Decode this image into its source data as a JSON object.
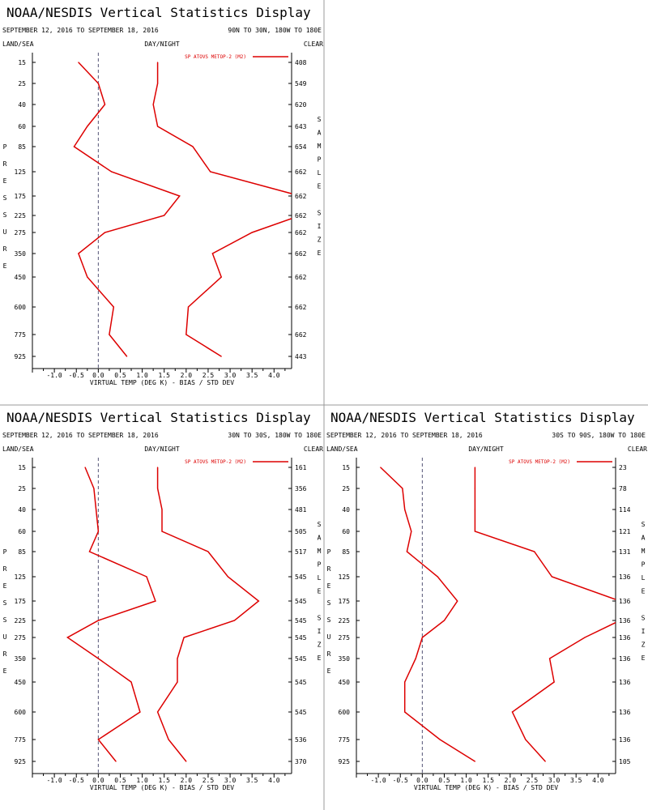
{
  "panel_title": "NOAA/NESDIS Vertical Statistics Display",
  "labels": {
    "land_sea": "LAND/SEA",
    "day_night": "DAY/NIGHT",
    "clear": "CLEAR",
    "xlabel": "VIRTUAL TEMP (DEG K) - BIAS / STD DEV",
    "left_axis_letters": [
      "P",
      "R",
      "E",
      "S",
      "S",
      "U",
      "R",
      "E"
    ],
    "right_axis_letters": [
      "S",
      "A",
      "M",
      "P",
      "L",
      "E",
      "",
      "S",
      "I",
      "Z",
      "E"
    ]
  },
  "colors": {
    "series": "#dd0000",
    "axis": "#000000",
    "zero_line": "#555577",
    "divider": "#999999"
  },
  "chart_data": [
    {
      "type": "line",
      "date_range": "SEPTEMBER 12, 2016 TO SEPTEMBER 18, 2016",
      "region": "90N TO 30N, 180W TO 180E",
      "legend": "SP ATOVS METOP-2 (M2)",
      "pressure_levels": [
        15,
        25,
        40,
        60,
        85,
        125,
        175,
        225,
        275,
        350,
        450,
        600,
        775,
        925
      ],
      "sample_size": [
        408,
        549,
        620,
        643,
        654,
        662,
        662,
        662,
        662,
        662,
        662,
        662,
        662,
        443
      ],
      "x_ticks": [
        "-1.0",
        "-0.5",
        "0.0",
        "0.5",
        "1.0",
        "1.5",
        "2.0",
        "2.5",
        "3.0",
        "3.5",
        "4.0"
      ],
      "xlim": [
        -1.5,
        4.4
      ],
      "series": [
        {
          "name": "bias",
          "values": [
            -0.45,
            0.0,
            0.15,
            -0.25,
            -0.55,
            0.3,
            1.85,
            1.5,
            0.15,
            -0.45,
            -0.25,
            0.35,
            0.25,
            0.65
          ]
        },
        {
          "name": "std_dev",
          "values": [
            1.35,
            1.35,
            1.25,
            1.35,
            2.15,
            2.55,
            4.6,
            4.6,
            3.5,
            2.6,
            2.8,
            2.05,
            2.0,
            2.8
          ]
        }
      ]
    },
    {
      "type": "line",
      "date_range": "SEPTEMBER 12, 2016 TO SEPTEMBER 18, 2016",
      "region": "30N TO 30S, 180W TO 180E",
      "legend": "SP ATOVS METOP-2 (M2)",
      "pressure_levels": [
        15,
        25,
        40,
        60,
        85,
        125,
        175,
        225,
        275,
        350,
        450,
        600,
        775,
        925
      ],
      "sample_size": [
        161,
        356,
        481,
        505,
        517,
        545,
        545,
        545,
        545,
        545,
        545,
        545,
        536,
        370
      ],
      "x_ticks": [
        "-1.0",
        "-0.5",
        "0.0",
        "0.5",
        "1.0",
        "1.5",
        "2.0",
        "2.5",
        "3.0",
        "3.5",
        "4.0"
      ],
      "xlim": [
        -1.5,
        4.4
      ],
      "series": [
        {
          "name": "bias",
          "values": [
            -0.3,
            -0.1,
            -0.05,
            0.0,
            -0.2,
            1.1,
            1.3,
            0.0,
            -0.7,
            0.0,
            0.75,
            0.95,
            0.0,
            0.4
          ]
        },
        {
          "name": "std_dev",
          "values": [
            1.35,
            1.35,
            1.45,
            1.45,
            2.5,
            2.95,
            3.65,
            3.1,
            1.95,
            1.8,
            1.8,
            1.35,
            1.6,
            2.0
          ]
        }
      ]
    },
    {
      "type": "line",
      "date_range": "SEPTEMBER 12, 2016 TO SEPTEMBER 18, 2016",
      "region": "30S TO 90S, 180W TO 180E",
      "legend": "SP ATOVS METOP-2 (M2)",
      "pressure_levels": [
        15,
        25,
        40,
        60,
        85,
        125,
        175,
        225,
        275,
        350,
        450,
        600,
        775,
        925
      ],
      "sample_size": [
        23,
        78,
        114,
        121,
        131,
        136,
        136,
        136,
        136,
        136,
        136,
        136,
        136,
        105
      ],
      "x_ticks": [
        "-1.0",
        "-0.5",
        "0.0",
        "0.5",
        "1.0",
        "1.5",
        "2.0",
        "2.5",
        "3.0",
        "3.5",
        "4.0"
      ],
      "xlim": [
        -1.5,
        4.4
      ],
      "series": [
        {
          "name": "bias",
          "values": [
            -0.95,
            -0.45,
            -0.4,
            -0.25,
            -0.35,
            0.35,
            0.8,
            0.5,
            0.0,
            -0.15,
            -0.4,
            -0.4,
            0.4,
            1.2
          ]
        },
        {
          "name": "std_dev",
          "values": [
            1.2,
            1.2,
            1.2,
            1.2,
            2.55,
            2.95,
            4.5,
            4.5,
            3.7,
            2.9,
            3.0,
            2.05,
            2.35,
            2.8
          ]
        }
      ]
    }
  ]
}
